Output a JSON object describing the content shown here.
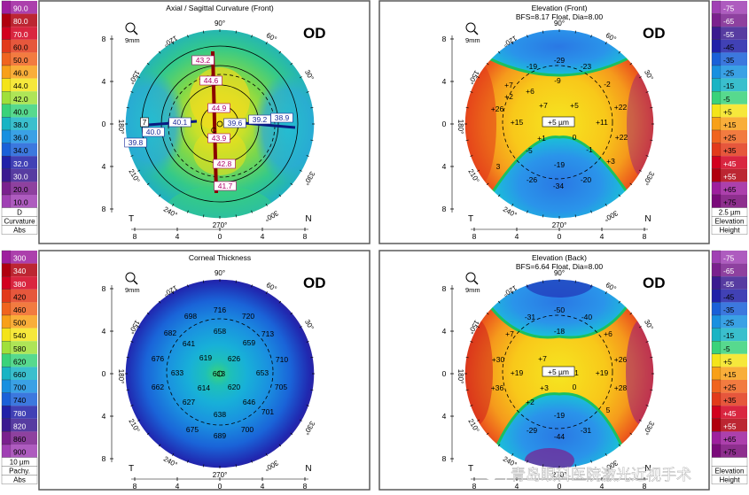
{
  "colors": {
    "frame": "#5a5a5a",
    "panel_bg": "#ffffff",
    "marker_red": "#cc0000",
    "marker_blue": "#1a2a9a"
  },
  "legend_left_top": {
    "values": [
      "90.0",
      "80.0",
      "70.0",
      "60.0",
      "50.0",
      "46.0",
      "44.0",
      "42.0",
      "40.0",
      "38.0",
      "36.0",
      "34.0",
      "32.0",
      "30.0",
      "20.0",
      "10.0"
    ],
    "colors": [
      "#9e1f9e",
      "#b0000e",
      "#d2001e",
      "#e23a1a",
      "#f0641e",
      "#f8a018",
      "#f4e41a",
      "#a0e03a",
      "#3ad27a",
      "#18b4c4",
      "#1890e0",
      "#1a60d8",
      "#2020a8",
      "#3a1a90",
      "#7a208e",
      "#a040b4"
    ],
    "footer": [
      "D",
      "Curvature",
      "Abs"
    ]
  },
  "legend_left_bottom": {
    "values": [
      "300",
      "340",
      "380",
      "420",
      "460",
      "500",
      "540",
      "580",
      "620",
      "660",
      "700",
      "740",
      "780",
      "820",
      "860",
      "900"
    ],
    "colors": [
      "#9e1f9e",
      "#b0000e",
      "#d2001e",
      "#e23a1a",
      "#f0641e",
      "#f8a018",
      "#f4e41a",
      "#a0e03a",
      "#3ad27a",
      "#18b4c4",
      "#1890e0",
      "#1a60d8",
      "#2020a8",
      "#3a1a90",
      "#7a208e",
      "#a040b4"
    ],
    "footer": [
      "10 µm",
      "Pachy.",
      "Abs"
    ]
  },
  "legend_right_top": {
    "values": [
      "-75",
      "-65",
      "-55",
      "-45",
      "-35",
      "-25",
      "-15",
      "-5",
      "+5",
      "+15",
      "+25",
      "+35",
      "+45",
      "+55",
      "+65",
      "+75"
    ],
    "colors": [
      "#a040b4",
      "#7a208e",
      "#3a1a90",
      "#2020a8",
      "#1a60d8",
      "#1890e0",
      "#18b4c4",
      "#3ad27a",
      "#f4e41a",
      "#f8a018",
      "#f0641e",
      "#e23a1a",
      "#d2001e",
      "#b0000e",
      "#9e1f9e",
      "#7a0a7a"
    ],
    "footer": [
      "2.5 µm",
      "Elevation",
      "Height"
    ]
  },
  "legend_right_bottom": {
    "values": [
      "-75",
      "-65",
      "-55",
      "-45",
      "-35",
      "-25",
      "-15",
      "-5",
      "+5",
      "+15",
      "+25",
      "+35",
      "+45",
      "+55",
      "+65",
      "+75"
    ],
    "colors": [
      "#a040b4",
      "#7a208e",
      "#3a1a90",
      "#2020a8",
      "#1a60d8",
      "#1890e0",
      "#18b4c4",
      "#3ad27a",
      "#f4e41a",
      "#f8a018",
      "#f0641e",
      "#e23a1a",
      "#d2001e",
      "#b0000e",
      "#9e1f9e",
      "#7a0a7a"
    ],
    "footer": [
      "",
      "Elevation",
      "Height"
    ]
  },
  "maps": [
    {
      "key": "axial",
      "title": "Axial / Sagittal Curvature (Front)",
      "subtitle": "",
      "eye": "OD",
      "zoom": "9mm",
      "deg_top": "90°",
      "deg_bottom": "270°",
      "deg_left": "180°",
      "deg_30": "30°",
      "deg_60": "60°",
      "deg_120": "120°",
      "deg_150": "150°",
      "deg_210": "210°",
      "deg_240": "240°",
      "deg_300": "300°",
      "deg_330": "330°",
      "side_left": "T",
      "side_right": "N",
      "yticks": [
        "8",
        "4",
        "0",
        "4",
        "8"
      ],
      "xticks": [
        "8",
        "4",
        "0",
        "4",
        "8"
      ],
      "values": [
        "43.2",
        "44.6",
        "44.9",
        "40.1",
        "39.6",
        "39.2",
        "38.9",
        "40.0",
        "39.8",
        "43.9",
        "42.8",
        "41.7",
        "7"
      ],
      "center_value": "C"
    },
    {
      "key": "elev_front",
      "title": "Elevation (Front)",
      "subtitle": "BFS=8.17 Float, Dia=8.00",
      "eye": "OD",
      "zoom": "9mm",
      "deg_top": "90°",
      "deg_bottom": "270°",
      "deg_left": "180°",
      "deg_30": "30°",
      "deg_60": "60°",
      "deg_120": "120°",
      "deg_150": "150°",
      "deg_210": "210°",
      "deg_240": "240°",
      "deg_300": "300°",
      "deg_330": "330°",
      "side_left": "T",
      "side_right": "N",
      "yticks": [
        "8",
        "4",
        "0",
        "4",
        "8"
      ],
      "xticks": [
        "8",
        "4",
        "0",
        "4",
        "8"
      ],
      "values": [
        "-29",
        "-19",
        "-23",
        "-9",
        "+7",
        "+6",
        "-2",
        "+2",
        "+26",
        "+7",
        "+5",
        "+22",
        "+15",
        "+11",
        "+22",
        "+1",
        "0",
        "-5",
        "-1",
        "+3",
        "-19",
        "-26",
        "-34",
        "-20",
        "3"
      ],
      "center_value": "+5 µm"
    },
    {
      "key": "thickness",
      "title": "Corneal Thickness",
      "subtitle": "",
      "eye": "OD",
      "zoom": "9mm",
      "deg_top": "90°",
      "deg_bottom": "270°",
      "deg_left": "180°",
      "deg_30": "30°",
      "deg_60": "60°",
      "deg_120": "120°",
      "deg_150": "150°",
      "deg_210": "210°",
      "deg_240": "240°",
      "deg_300": "300°",
      "deg_330": "330°",
      "side_left": "T",
      "side_right": "N",
      "yticks": [
        "8",
        "4",
        "0",
        "4",
        "8"
      ],
      "xticks": [
        "8",
        "4",
        "0",
        "4",
        "8"
      ],
      "values": [
        "716",
        "698",
        "720",
        "682",
        "658",
        "713",
        "641",
        "659",
        "676",
        "619",
        "626",
        "710",
        "633",
        "653",
        "662",
        "614",
        "620",
        "705",
        "627",
        "646",
        "638",
        "701",
        "675",
        "689",
        "700"
      ],
      "center_value": "613"
    },
    {
      "key": "elev_back",
      "title": "Elevation (Back)",
      "subtitle": "BFS=6.64 Float, Dia=8.00",
      "eye": "OD",
      "zoom": "9mm",
      "deg_top": "90°",
      "deg_bottom": "270°",
      "deg_left": "180°",
      "deg_30": "30°",
      "deg_60": "60°",
      "deg_120": "120°",
      "deg_150": "150°",
      "deg_210": "210°",
      "deg_240": "240°",
      "deg_300": "300°",
      "deg_330": "330°",
      "side_left": "T",
      "side_right": "N",
      "yticks": [
        "8",
        "4",
        "0",
        "4",
        "8"
      ],
      "xticks": [
        "8",
        "4",
        "0",
        "4",
        "8"
      ],
      "values": [
        "-50",
        "-31",
        "-40",
        "-18",
        "+7",
        "+6",
        "+30",
        "+26",
        "+7",
        "+19",
        "+19",
        "+36",
        "+28",
        "+2",
        "+3",
        "0",
        "+1",
        "-19",
        "-29",
        "-31",
        "-44",
        "5"
      ],
      "center_value": "+5 µm"
    }
  ],
  "watermark": "青岛眼科医院激光近视手术"
}
